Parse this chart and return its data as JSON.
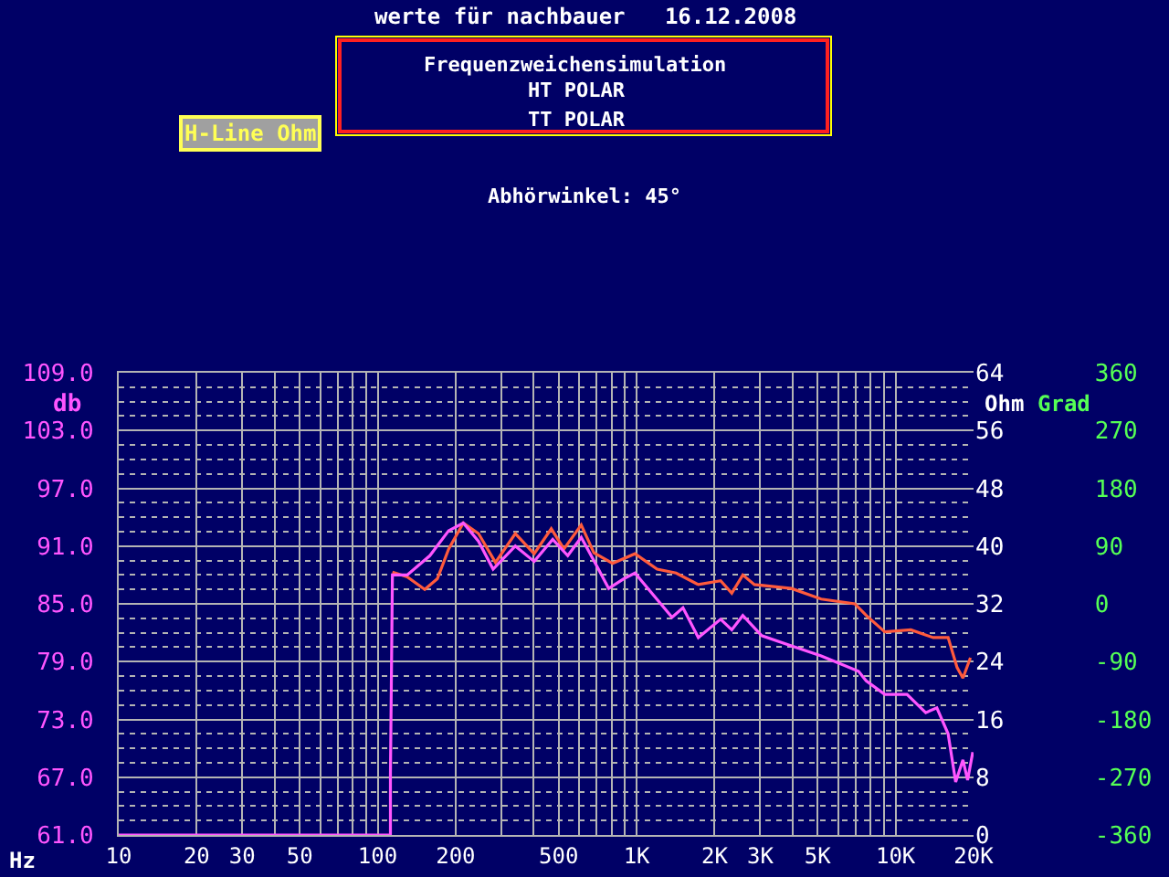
{
  "chart_data": {
    "type": "line",
    "title": "werte für nachbauer   16.12.2008",
    "xlabel": "Hz",
    "ylabel": "db",
    "y2label": "Ohm",
    "y3label": "Grad",
    "annotations": [
      "Frequenzweichensimulation",
      "HT POLAR",
      "TT POLAR",
      "H-Line Ohm",
      "Abhörwinkel: 45°"
    ],
    "log": "x",
    "grid": true,
    "marker": "none",
    "line_style": "solid",
    "xlim": [
      10,
      20000
    ],
    "xticks": [
      10,
      20,
      30,
      {
        "value": 40,
        "label": null
      },
      50,
      {
        "value": 60,
        "label": null
      },
      {
        "value": 70,
        "label": null
      },
      {
        "value": 80,
        "label": null
      },
      {
        "value": 90,
        "label": null
      },
      100,
      200,
      {
        "value": 300,
        "label": null
      },
      {
        "value": 400,
        "label": null
      },
      500,
      {
        "value": 600,
        "label": null
      },
      {
        "value": 700,
        "label": null
      },
      {
        "value": 800,
        "label": null
      },
      {
        "value": 900,
        "label": null
      },
      {
        "value": 1000,
        "label": "1K"
      },
      {
        "value": 2000,
        "label": "2K"
      },
      {
        "value": 3000,
        "label": "3K"
      },
      {
        "value": 4000,
        "label": null
      },
      {
        "value": 5000,
        "label": "5K"
      },
      {
        "value": 6000,
        "label": null
      },
      {
        "value": 7000,
        "label": null
      },
      {
        "value": 8000,
        "label": null
      },
      {
        "value": 9000,
        "label": null
      },
      {
        "value": 10000,
        "label": "10K"
      },
      {
        "value": 20000,
        "label": "20K"
      }
    ],
    "ylim": [
      61,
      109
    ],
    "yticks": [
      {
        "value": 61,
        "label": "61.0"
      },
      {
        "value": 67,
        "label": "67.0"
      },
      {
        "value": 73,
        "label": "73.0"
      },
      {
        "value": 79,
        "label": "79.0"
      },
      {
        "value": 85,
        "label": "85.0"
      },
      {
        "value": 91,
        "label": "91.0"
      },
      {
        "value": 97,
        "label": "97.0"
      },
      {
        "value": 103,
        "label": "103.0"
      },
      {
        "value": 109,
        "label": "109.0"
      }
    ],
    "y2lim": [
      0,
      64
    ],
    "y2ticks": [
      0,
      8,
      16,
      24,
      32,
      40,
      48,
      56,
      64
    ],
    "y3lim": [
      -360,
      360
    ],
    "y3ticks": [
      -360,
      -270,
      -180,
      -90,
      0,
      90,
      180,
      270,
      360
    ],
    "series": [
      {
        "color": "#ff5a3c",
        "x": [
          114,
          130,
          152,
          170,
          188,
          214,
          245,
          285,
          340,
          402,
          468,
          524,
          611,
          684,
          807,
          985,
          1200,
          1420,
          1730,
          2110,
          2330,
          2570,
          2850,
          3960,
          5160,
          6960,
          7700,
          9080,
          11450,
          13970,
          15950,
          17270,
          18200,
          19450
        ],
        "values": [
          88.3,
          87.8,
          86.5,
          87.6,
          90.7,
          93.4,
          92.3,
          89.3,
          92.3,
          90.2,
          92.8,
          90.7,
          93.2,
          90.3,
          89.2,
          90.2,
          88.6,
          88.2,
          87.0,
          87.4,
          86.1,
          88.0,
          87.0,
          86.6,
          85.5,
          85.0,
          83.8,
          82.1,
          82.3,
          81.5,
          81.5,
          78.4,
          77.3,
          79.4
        ]
      },
      {
        "color": "#ff55ff",
        "x": [
          10,
          112,
          112,
          114,
          130,
          159,
          188,
          214,
          245,
          279,
          340,
          402,
          474,
          542,
          611,
          706,
          780,
          891,
          985,
          1370,
          1510,
          1730,
          2110,
          2330,
          2570,
          3040,
          3710,
          5160,
          7190,
          7700,
          9080,
          11070,
          13070,
          14430,
          15950,
          17060,
          18200,
          18970,
          19860
        ],
        "values": [
          61,
          61,
          67.3,
          88.0,
          88.0,
          90.0,
          92.6,
          93.4,
          91.5,
          88.6,
          91.0,
          89.4,
          91.7,
          90.0,
          91.9,
          88.8,
          86.6,
          87.6,
          88.2,
          83.6,
          84.6,
          81.5,
          83.4,
          82.3,
          83.8,
          81.7,
          80.9,
          79.6,
          78.0,
          77.0,
          75.6,
          75.6,
          73.7,
          74.2,
          71.5,
          66.5,
          68.8,
          66.7,
          69.6
        ]
      }
    ]
  }
}
